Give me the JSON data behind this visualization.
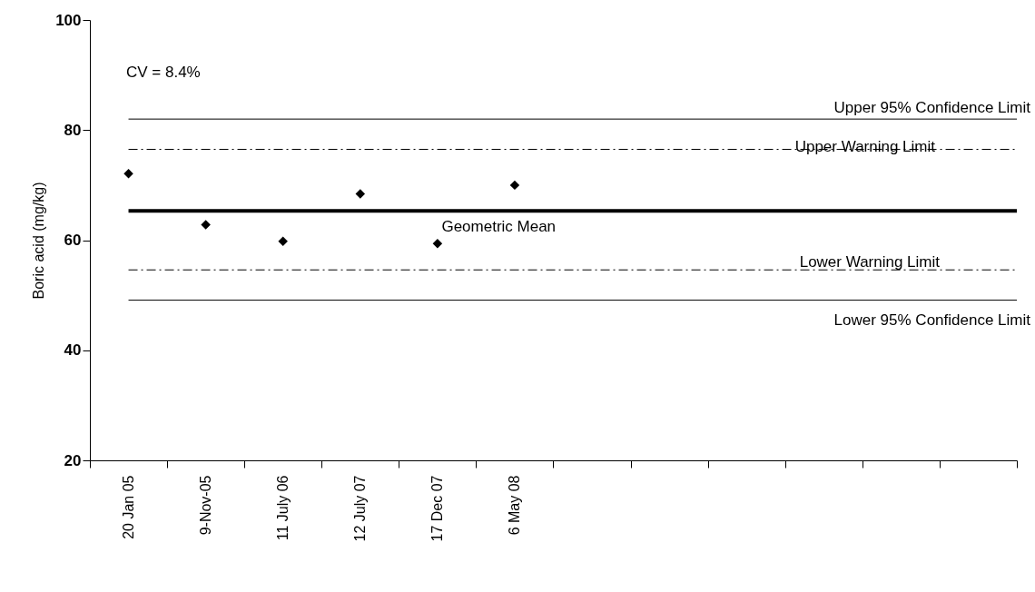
{
  "chart_data": {
    "type": "scatter",
    "ylabel": "Boric acid (mg/kg)",
    "categories": [
      "20 Jan 05",
      "9-Nov-05",
      "11 July 06",
      "12 July 07",
      "17 Dec 07",
      "6 May 08",
      null,
      null,
      null,
      null,
      null,
      null
    ],
    "series": [
      {
        "color": "#000000",
        "values": [
          72.1,
          62.8,
          59.8,
          68.4,
          59.4,
          70.0,
          null,
          null,
          null,
          null,
          null,
          null
        ]
      }
    ],
    "marker": "diamond",
    "ylim": [
      20,
      100
    ],
    "yticks": [
      20,
      40,
      60,
      80,
      100
    ],
    "grid": false,
    "ref_lines": [
      {
        "axis": "y",
        "value": 82.0,
        "label": "Upper 95% Confidence Limit",
        "color": "#000000",
        "line_style": "solid"
      },
      {
        "axis": "y",
        "value": 76.5,
        "label": "Upper Warning Limit",
        "color": "#000000",
        "line_style": "dashdot"
      },
      {
        "axis": "y",
        "value": 65.3,
        "label": "Geometric Mean",
        "color": "#000000",
        "line_style": "solid"
      },
      {
        "axis": "y",
        "value": 54.6,
        "label": "Lower Warning Limit",
        "color": "#000000",
        "line_style": "dashdot"
      },
      {
        "axis": "y",
        "value": 49.1,
        "label": "Lower 95% Confidence Limit",
        "color": "#000000",
        "line_style": "solid"
      }
    ],
    "annotations": [
      "CV =  8.4%"
    ]
  }
}
